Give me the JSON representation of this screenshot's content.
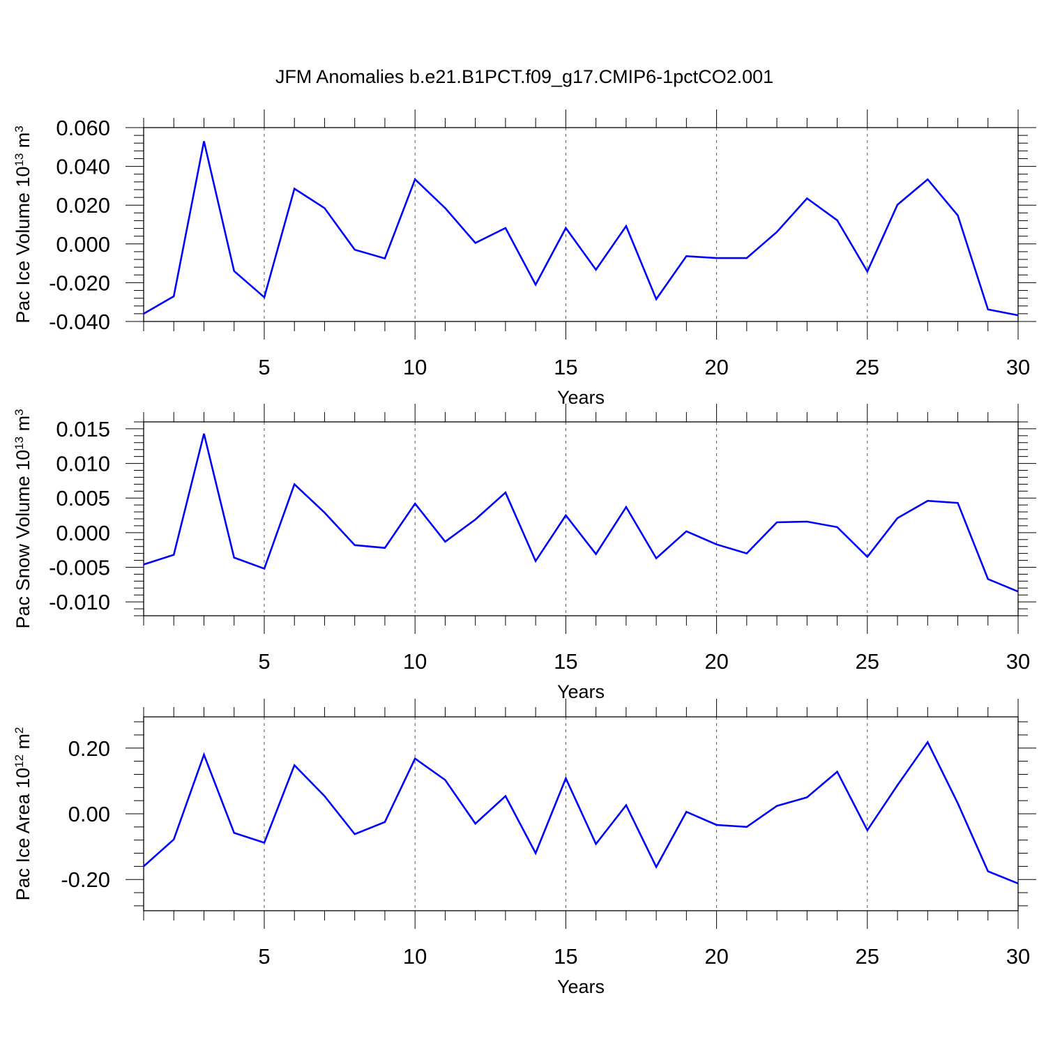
{
  "figure_title": "JFM Anomalies b.e21.B1PCT.f09_g17.CMIP6-1pctCO2.001",
  "colors": {
    "series": "#0000ff",
    "axis": "#000000",
    "grid": "#555555"
  },
  "chart_data": [
    {
      "type": "line",
      "title": "JFM Anomalies b.e21.B1PCT.f09_g17.CMIP6-1pctCO2.001",
      "xlabel": "Years",
      "ylabel_main": "Pac Ice Volume 10",
      "ylabel_exp": "13",
      "ylabel_unit": " m",
      "ylabel_unit_exp": "3",
      "xlim": [
        1,
        30
      ],
      "ylim": [
        -0.04,
        0.06
      ],
      "xticks": [
        5,
        10,
        15,
        20,
        25,
        30
      ],
      "xtick_labels": [
        "5",
        "10",
        "15",
        "20",
        "25",
        "30"
      ],
      "yticks": [
        -0.04,
        -0.02,
        0.0,
        0.02,
        0.04,
        0.06
      ],
      "ytick_labels": [
        "-0.040",
        "-0.020",
        "0.000",
        "0.020",
        "0.040",
        "0.060"
      ],
      "grid": "dashed vertical at major x ticks",
      "x": [
        1,
        2,
        3,
        4,
        5,
        6,
        7,
        8,
        9,
        10,
        11,
        12,
        13,
        14,
        15,
        16,
        17,
        18,
        19,
        20,
        21,
        22,
        23,
        24,
        25,
        26,
        27,
        28,
        29,
        30
      ],
      "values": [
        -0.036,
        -0.027,
        0.053,
        -0.014,
        -0.0275,
        0.0285,
        0.0185,
        -0.003,
        -0.0075,
        0.0333,
        0.0185,
        0.0005,
        0.0082,
        -0.021,
        0.0082,
        -0.0133,
        0.0092,
        -0.0285,
        -0.0063,
        -0.0073,
        -0.0073,
        0.0062,
        0.0235,
        0.0122,
        -0.0142,
        0.0202,
        0.0333,
        0.0147,
        -0.0338,
        -0.0368
      ]
    },
    {
      "type": "line",
      "xlabel": "Years",
      "ylabel_main": "Pac Snow Volume 10",
      "ylabel_exp": "13",
      "ylabel_unit": " m",
      "ylabel_unit_exp": "3",
      "xlim": [
        1,
        30
      ],
      "ylim": [
        -0.012,
        0.016
      ],
      "xticks": [
        5,
        10,
        15,
        20,
        25,
        30
      ],
      "xtick_labels": [
        "5",
        "10",
        "15",
        "20",
        "25",
        "30"
      ],
      "yticks": [
        -0.01,
        -0.005,
        0.0,
        0.005,
        0.01,
        0.015
      ],
      "ytick_labels": [
        "-0.010",
        "-0.005",
        "0.000",
        "0.005",
        "0.010",
        "0.015"
      ],
      "grid": "dashed vertical at major x ticks",
      "x": [
        1,
        2,
        3,
        4,
        5,
        6,
        7,
        8,
        9,
        10,
        11,
        12,
        13,
        14,
        15,
        16,
        17,
        18,
        19,
        20,
        21,
        22,
        23,
        24,
        25,
        26,
        27,
        28,
        29,
        30
      ],
      "values": [
        -0.0046,
        -0.0032,
        0.0143,
        -0.0036,
        -0.0052,
        0.007,
        0.0029,
        -0.0018,
        -0.0022,
        0.0042,
        -0.0013,
        0.0019,
        0.0058,
        -0.0041,
        0.0025,
        -0.0031,
        0.0037,
        -0.0037,
        0.0002,
        -0.0017,
        -0.003,
        0.0015,
        0.0016,
        0.0008,
        -0.0035,
        0.0021,
        0.0046,
        0.0043,
        -0.0067,
        -0.0085
      ]
    },
    {
      "type": "line",
      "xlabel": "Years",
      "ylabel_main": "Pac Ice Area 10",
      "ylabel_exp": "12",
      "ylabel_unit": " m",
      "ylabel_unit_exp": "2",
      "xlim": [
        1,
        30
      ],
      "ylim": [
        -0.295,
        0.295
      ],
      "xticks": [
        5,
        10,
        15,
        20,
        25,
        30
      ],
      "xtick_labels": [
        "5",
        "10",
        "15",
        "20",
        "25",
        "30"
      ],
      "yticks": [
        -0.2,
        0.0,
        0.2
      ],
      "ytick_labels": [
        "-0.20",
        "0.00",
        "0.20"
      ],
      "grid": "dashed vertical at major x ticks",
      "x": [
        1,
        2,
        3,
        4,
        5,
        6,
        7,
        8,
        9,
        10,
        11,
        12,
        13,
        14,
        15,
        16,
        17,
        18,
        19,
        20,
        21,
        22,
        23,
        24,
        25,
        26,
        27,
        28,
        29,
        30
      ],
      "values": [
        -0.16,
        -0.078,
        0.18,
        -0.058,
        -0.088,
        0.148,
        0.054,
        -0.062,
        -0.025,
        0.168,
        0.103,
        -0.03,
        0.054,
        -0.12,
        0.108,
        -0.092,
        0.026,
        -0.162,
        0.006,
        -0.034,
        -0.04,
        0.024,
        0.05,
        0.128,
        -0.05,
        0.087,
        0.218,
        0.032,
        -0.175,
        -0.212
      ]
    }
  ]
}
